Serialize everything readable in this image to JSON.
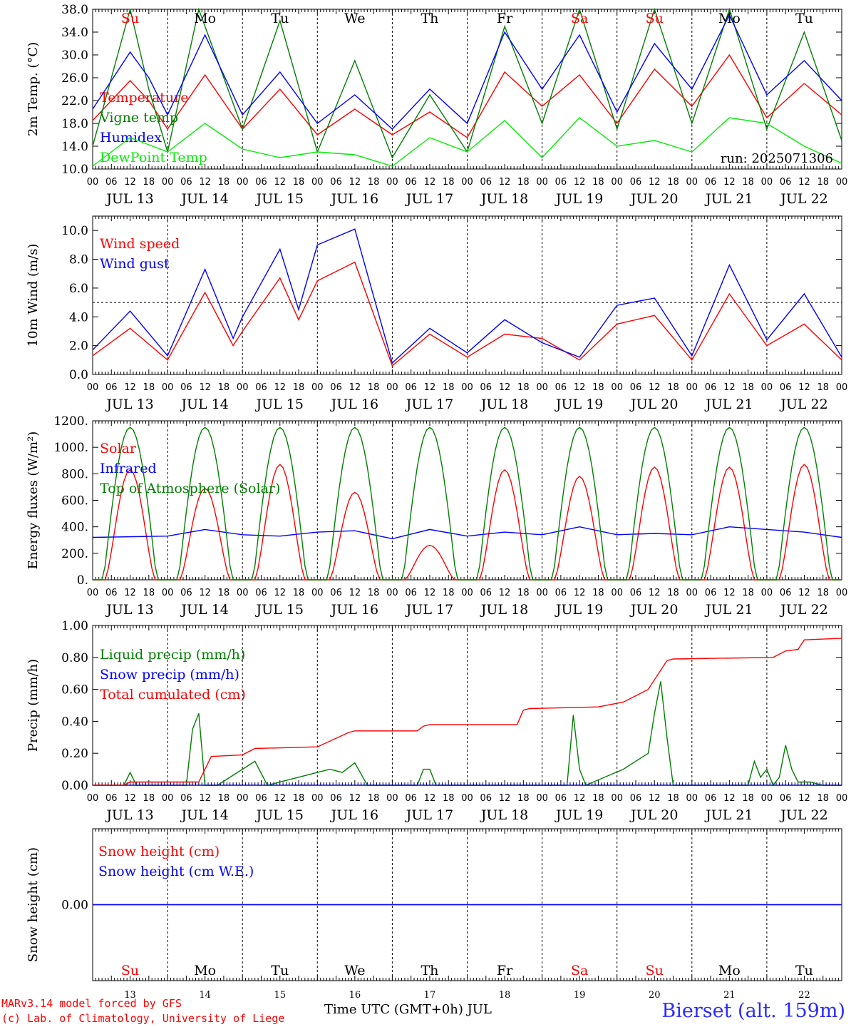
{
  "chart_data": [
    {
      "type": "line",
      "ylabel": "2m Temp. (°C)",
      "ylim": [
        10,
        38
      ],
      "yticks": [
        "10.0",
        "14.0",
        "18.0",
        "22.0",
        "26.0",
        "30.0",
        "34.0",
        "38.0"
      ],
      "annotation": "run: 2025071306",
      "series": [
        {
          "name": "Temperature",
          "color": "#ff0000",
          "hours": [
            0,
            12,
            18,
            24,
            36,
            48,
            60,
            72,
            84,
            96,
            108,
            120,
            132,
            144,
            156,
            168,
            180,
            192,
            204,
            216,
            228,
            240
          ],
          "values": [
            18.5,
            25.5,
            22,
            17,
            26.5,
            17,
            24,
            16,
            20.5,
            16,
            20,
            15.5,
            27,
            21,
            26.5,
            18,
            27.5,
            21,
            30,
            19,
            25,
            19.5
          ]
        },
        {
          "name": "Vigne temp",
          "color": "#008000",
          "hours": [
            0,
            12,
            18,
            24,
            34,
            48,
            60,
            72,
            84,
            96,
            108,
            120,
            132,
            144,
            156,
            168,
            180,
            192,
            204,
            216,
            228,
            240
          ],
          "values": [
            14,
            38,
            24,
            13,
            38,
            17,
            36,
            13,
            29,
            12,
            23,
            13,
            35,
            18,
            38,
            17,
            38,
            18,
            38,
            17,
            34,
            15
          ]
        },
        {
          "name": "Humidex",
          "color": "#0000ff",
          "hours": [
            0,
            12,
            18,
            24,
            36,
            48,
            60,
            72,
            84,
            96,
            108,
            120,
            132,
            144,
            156,
            168,
            180,
            192,
            204,
            216,
            228,
            240
          ],
          "values": [
            20.5,
            30.5,
            26,
            19.5,
            33.5,
            19.5,
            27,
            18,
            23,
            17,
            24,
            18,
            34,
            24,
            33.5,
            20,
            32,
            24,
            37,
            23,
            29,
            22
          ]
        },
        {
          "name": "DewPoint Temp",
          "color": "#00ee00",
          "hours": [
            0,
            12,
            24,
            36,
            48,
            60,
            72,
            84,
            96,
            108,
            120,
            132,
            144,
            156,
            168,
            180,
            192,
            204,
            216,
            228,
            240
          ],
          "values": [
            10.5,
            15.5,
            13,
            18,
            13.5,
            12,
            13,
            12.5,
            10.5,
            15.5,
            13,
            18.5,
            12,
            19,
            14,
            15,
            13,
            19,
            18,
            14,
            11
          ]
        }
      ]
    },
    {
      "type": "line",
      "ylabel": "10m Wind (m/s)",
      "ylim": [
        0,
        11
      ],
      "yticks": [
        "0.0",
        "2.0",
        "4.0",
        "6.0",
        "8.0",
        "10.0"
      ],
      "reference_line": 5,
      "series": [
        {
          "name": "Wind speed",
          "color": "#ff0000",
          "hours": [
            0,
            12,
            24,
            36,
            45,
            48,
            60,
            66,
            72,
            84,
            96,
            108,
            120,
            132,
            144,
            156,
            168,
            180,
            192,
            204,
            216,
            228,
            240
          ],
          "values": [
            1.3,
            3.2,
            1.0,
            5.7,
            2.0,
            3.0,
            6.7,
            3.8,
            6.5,
            7.8,
            0.6,
            2.8,
            1.2,
            2.8,
            2.5,
            1.0,
            3.5,
            4.1,
            1.0,
            5.6,
            2.0,
            3.5,
            1.0
          ]
        },
        {
          "name": "Wind gust",
          "color": "#0000ff",
          "hours": [
            0,
            12,
            24,
            36,
            45,
            48,
            60,
            66,
            72,
            84,
            96,
            108,
            120,
            132,
            144,
            156,
            168,
            180,
            192,
            204,
            216,
            228,
            240
          ],
          "values": [
            1.7,
            4.4,
            1.3,
            7.3,
            2.5,
            4.0,
            8.7,
            4.5,
            9.0,
            10.1,
            0.8,
            3.2,
            1.5,
            3.8,
            2.2,
            1.2,
            4.8,
            5.3,
            1.3,
            7.6,
            2.4,
            5.6,
            1.2
          ]
        }
      ]
    },
    {
      "type": "line",
      "ylabel": "Energy fluxes (W/m²)",
      "ylim": [
        0,
        1200
      ],
      "yticks": [
        "0.",
        "200.",
        "400.",
        "600.",
        "800.",
        "1000.",
        "1200."
      ],
      "series": [
        {
          "name": "Solar",
          "color": "#ff0000",
          "peaks": [
            830,
            690,
            870,
            660,
            260,
            830,
            780,
            850,
            850,
            870
          ]
        },
        {
          "name": "Infrared",
          "color": "#0000ff",
          "hours": [
            0,
            24,
            36,
            48,
            60,
            72,
            84,
            96,
            108,
            120,
            132,
            144,
            156,
            168,
            180,
            192,
            204,
            216,
            228,
            240
          ],
          "values": [
            320,
            330,
            380,
            340,
            330,
            360,
            370,
            310,
            380,
            330,
            360,
            340,
            400,
            340,
            350,
            340,
            400,
            380,
            360,
            320
          ]
        },
        {
          "name": "Top of Atmosphere (Solar)",
          "color": "#008000",
          "peak": 1150
        }
      ]
    },
    {
      "type": "line",
      "ylabel": "Precip (mm/h)",
      "ylim": [
        0,
        1
      ],
      "yticks": [
        "0.00",
        "0.20",
        "0.40",
        "0.60",
        "0.80",
        "1.00"
      ],
      "series": [
        {
          "name": "Liquid precip (mm/h)",
          "color": "#008000",
          "hours": [
            0,
            10,
            12,
            14,
            20,
            30,
            32,
            34,
            36,
            40,
            48,
            52,
            56,
            72,
            76,
            80,
            84,
            88,
            104,
            106,
            108,
            110,
            152,
            154,
            156,
            158,
            170,
            178,
            180,
            182,
            184,
            186,
            210,
            212,
            214,
            216,
            218,
            220,
            222,
            224,
            226,
            230,
            234,
            240
          ],
          "values": [
            0,
            0,
            0.08,
            0,
            0,
            0,
            0.35,
            0.45,
            0,
            0,
            0.1,
            0.15,
            0,
            0.08,
            0.1,
            0.08,
            0.14,
            0,
            0,
            0.1,
            0.1,
            0,
            0,
            0.44,
            0.1,
            0,
            0.1,
            0.2,
            0.45,
            0.65,
            0.3,
            0,
            0,
            0.15,
            0.05,
            0.1,
            0,
            0.05,
            0.25,
            0.1,
            0.02,
            0.02,
            0,
            0
          ]
        },
        {
          "name": "Snow precip (mm/h)",
          "color": "#0000ff",
          "hours": [
            0,
            240
          ],
          "values": [
            0,
            0
          ]
        },
        {
          "name": "Total cumulated (cm)",
          "color": "#ff0000",
          "hours": [
            0,
            10,
            12,
            34,
            38,
            48,
            52,
            72,
            82,
            84,
            104,
            106,
            108,
            136,
            138,
            140,
            162,
            170,
            174,
            178,
            184,
            186,
            218,
            222,
            226,
            228,
            240
          ],
          "values": [
            0,
            0,
            0.02,
            0.02,
            0.18,
            0.19,
            0.23,
            0.24,
            0.33,
            0.34,
            0.34,
            0.37,
            0.38,
            0.38,
            0.47,
            0.48,
            0.49,
            0.52,
            0.56,
            0.6,
            0.78,
            0.79,
            0.8,
            0.84,
            0.85,
            0.91,
            0.92
          ]
        }
      ]
    },
    {
      "type": "line",
      "ylabel": "Snow height (cm)",
      "ylim": [
        -1,
        1
      ],
      "yticks": [
        "0.00"
      ],
      "series": [
        {
          "name": "Snow height (cm)",
          "color": "#ff0000",
          "hours": [
            0,
            240
          ],
          "values": [
            0,
            0
          ]
        },
        {
          "name": "Snow height (cm W.E.)",
          "color": "#0000ff",
          "hours": [
            0,
            240
          ],
          "values": [
            0,
            0
          ]
        }
      ]
    }
  ],
  "x_axis": {
    "hour_ticks": [
      "00",
      "06",
      "12",
      "18"
    ],
    "end_tick": "00",
    "dates": [
      "JUL 13",
      "JUL 14",
      "JUL 15",
      "JUL 16",
      "JUL 17",
      "JUL 18",
      "JUL 19",
      "JUL 20",
      "JUL 21",
      "JUL 22"
    ],
    "day_numbers": [
      "13",
      "14",
      "15",
      "16",
      "17",
      "18",
      "19",
      "20",
      "21",
      "22"
    ],
    "weekdays": [
      "Su",
      "Mo",
      "Tu",
      "We",
      "Th",
      "Fr",
      "Sa",
      "Su",
      "Mo",
      "Tu"
    ],
    "weekend_color": "#ff0000",
    "title": "Time UTC (GMT+0h) JUL"
  },
  "footer": {
    "credit_line1": "MARv3.14 model forced by GFS",
    "credit_line2": "(c) Lab. of Climatology, University of Liege",
    "station": "Bierset (alt. 159m)"
  }
}
